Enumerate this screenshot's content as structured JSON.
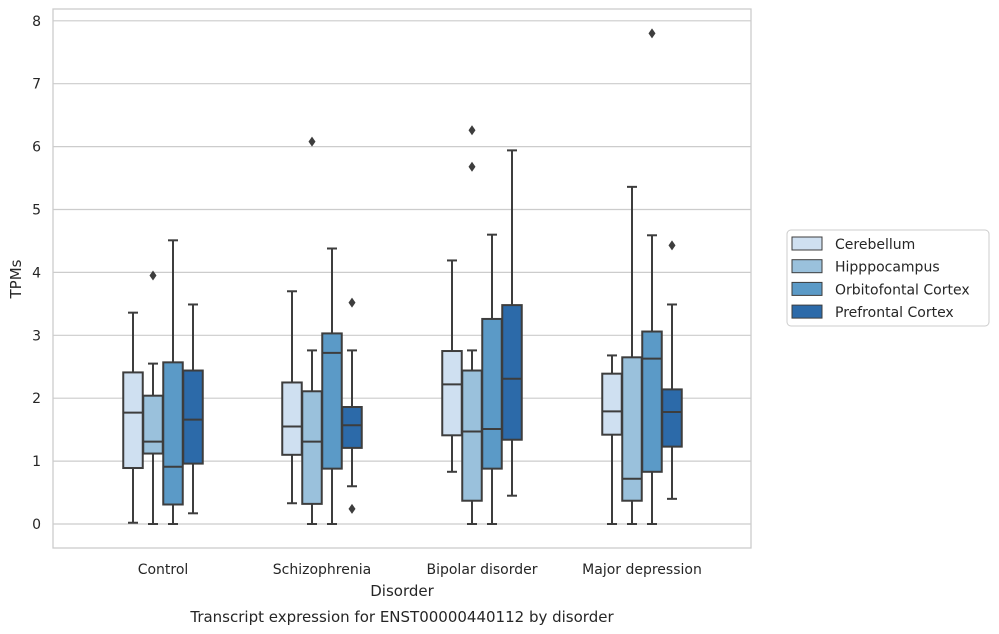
{
  "chart_data": {
    "type": "boxplot",
    "title": "",
    "caption": "Transcript expression for ENST00000440112 by disorder",
    "xlabel": "Disorder",
    "ylabel": "TPMs",
    "ylim": [
      -0.38,
      8.2
    ],
    "yticks": [
      0,
      1,
      2,
      3,
      4,
      5,
      6,
      7,
      8
    ],
    "grid": "horizontal",
    "legend_position": "right",
    "categories": [
      "Control",
      "Schizophrenia",
      "Bipolar disorder",
      "Major depression"
    ],
    "series": [
      {
        "name": "Cerebellum",
        "color": "#cfe0f1",
        "boxes": [
          {
            "whislo": 0.02,
            "q1": 0.89,
            "med": 1.77,
            "q3": 2.41,
            "whishi": 3.36,
            "fliers": []
          },
          {
            "whislo": 0.33,
            "q1": 1.1,
            "med": 1.55,
            "q3": 2.25,
            "whishi": 3.7,
            "fliers": []
          },
          {
            "whislo": 0.83,
            "q1": 1.41,
            "med": 2.22,
            "q3": 2.75,
            "whishi": 4.19,
            "fliers": []
          },
          {
            "whislo": 0.0,
            "q1": 1.42,
            "med": 1.79,
            "q3": 2.39,
            "whishi": 2.68,
            "fliers": []
          }
        ]
      },
      {
        "name": "Hipppocampus",
        "color": "#9ac1dc",
        "boxes": [
          {
            "whislo": 0.0,
            "q1": 1.12,
            "med": 1.31,
            "q3": 2.04,
            "whishi": 2.55,
            "fliers": [
              3.95
            ]
          },
          {
            "whislo": 0.0,
            "q1": 0.32,
            "med": 1.31,
            "q3": 2.11,
            "whishi": 2.76,
            "fliers": [
              6.08
            ]
          },
          {
            "whislo": 0.0,
            "q1": 0.37,
            "med": 1.47,
            "q3": 2.44,
            "whishi": 2.76,
            "fliers": [
              5.68,
              6.26
            ]
          },
          {
            "whislo": 0.0,
            "q1": 0.37,
            "med": 0.72,
            "q3": 2.65,
            "whishi": 5.36,
            "fliers": []
          }
        ]
      },
      {
        "name": "Orbitofontal Cortex",
        "color": "#5b9ac7",
        "boxes": [
          {
            "whislo": 0.0,
            "q1": 0.31,
            "med": 0.91,
            "q3": 2.57,
            "whishi": 4.51,
            "fliers": []
          },
          {
            "whislo": 0.0,
            "q1": 0.88,
            "med": 2.72,
            "q3": 3.03,
            "whishi": 4.38,
            "fliers": []
          },
          {
            "whislo": 0.0,
            "q1": 0.88,
            "med": 1.51,
            "q3": 3.26,
            "whishi": 4.6,
            "fliers": []
          },
          {
            "whislo": 0.0,
            "q1": 0.83,
            "med": 2.63,
            "q3": 3.06,
            "whishi": 4.59,
            "fliers": [
              7.8
            ]
          }
        ]
      },
      {
        "name": "Prefrontal Cortex",
        "color": "#2c6aa9",
        "boxes": [
          {
            "whislo": 0.17,
            "q1": 0.96,
            "med": 1.66,
            "q3": 2.44,
            "whishi": 3.49,
            "fliers": []
          },
          {
            "whislo": 0.6,
            "q1": 1.21,
            "med": 1.57,
            "q3": 1.86,
            "whishi": 2.76,
            "fliers": [
              0.24,
              3.52
            ]
          },
          {
            "whislo": 0.45,
            "q1": 1.34,
            "med": 2.31,
            "q3": 3.48,
            "whishi": 5.94,
            "fliers": []
          },
          {
            "whislo": 0.4,
            "q1": 1.23,
            "med": 1.78,
            "q3": 2.14,
            "whishi": 3.49,
            "fliers": [
              4.43
            ]
          }
        ]
      }
    ]
  }
}
